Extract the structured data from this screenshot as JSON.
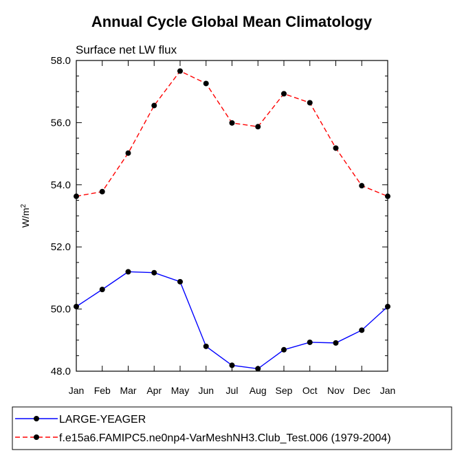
{
  "chart_data": {
    "type": "line",
    "title": "Annual Cycle Global Mean Climatology",
    "subtitle": "Surface net LW flux",
    "ylabel": "W/m",
    "ylabel_sup": "2",
    "ylim": [
      48.0,
      58.0
    ],
    "yticks": [
      "48.0",
      "50.0",
      "52.0",
      "54.0",
      "56.0",
      "58.0"
    ],
    "categories": [
      "Jan",
      "Feb",
      "Mar",
      "Apr",
      "May",
      "Jun",
      "Jul",
      "Aug",
      "Sep",
      "Oct",
      "Nov",
      "Dec",
      "Jan"
    ],
    "series": [
      {
        "name": "LARGE-YEAGER",
        "color": "#0000ff",
        "dash": "solid",
        "values": [
          50.08,
          50.63,
          51.2,
          51.17,
          50.88,
          48.8,
          48.19,
          48.08,
          48.69,
          48.93,
          48.91,
          49.32,
          50.08
        ]
      },
      {
        "name": "f.e15a6.FAMIPC5.ne0np4-VarMeshNH3.Club_Test.006 (1979-2004)",
        "color": "#ff0000",
        "dash": "dashed",
        "values": [
          53.63,
          53.78,
          55.02,
          56.55,
          57.66,
          57.26,
          55.99,
          55.87,
          56.93,
          56.64,
          55.18,
          53.97,
          53.63
        ]
      }
    ],
    "legend_position": "bottom"
  }
}
